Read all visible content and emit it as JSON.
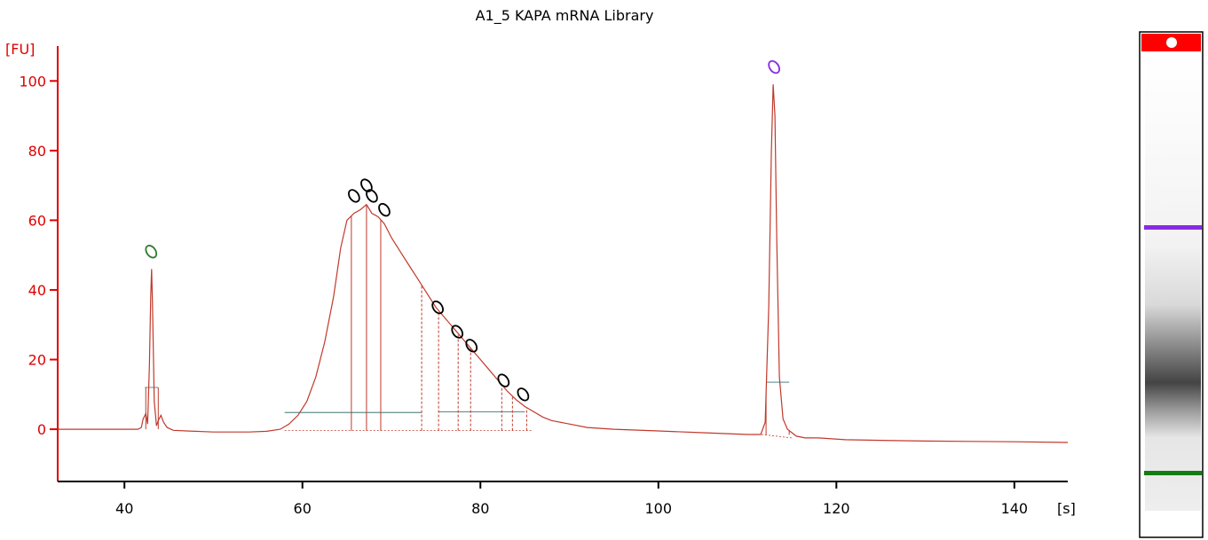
{
  "chart_data": {
    "type": "line",
    "title": "A1_5 KAPA mRNA Library",
    "ylabel": "[FU]",
    "xlabel": "[s]",
    "xlim": [
      32.5,
      146
    ],
    "ylim": [
      -15,
      110
    ],
    "xticks": [
      40,
      60,
      80,
      100,
      120,
      140
    ],
    "yticks": [
      0,
      20,
      40,
      60,
      80,
      100
    ],
    "grid": false,
    "series": [
      {
        "color": "#c0392b",
        "points": [
          [
            32.5,
            0
          ],
          [
            41.5,
            0
          ],
          [
            41.9,
            0.5
          ],
          [
            42.1,
            3
          ],
          [
            42.4,
            4.5
          ],
          [
            42.6,
            1.5
          ],
          [
            42.8,
            18
          ],
          [
            42.95,
            38
          ],
          [
            43.05,
            46
          ],
          [
            43.15,
            36
          ],
          [
            43.35,
            8
          ],
          [
            43.6,
            1
          ],
          [
            43.8,
            2.5
          ],
          [
            44.1,
            4
          ],
          [
            44.4,
            2
          ],
          [
            44.8,
            0.5
          ],
          [
            45.5,
            -0.3
          ],
          [
            47,
            -0.5
          ],
          [
            50,
            -0.8
          ],
          [
            54,
            -0.8
          ],
          [
            56,
            -0.6
          ],
          [
            57.5,
            0
          ],
          [
            58.5,
            1.5
          ],
          [
            59.5,
            4
          ],
          [
            60.5,
            8
          ],
          [
            61.5,
            15
          ],
          [
            62.5,
            25
          ],
          [
            63.5,
            38
          ],
          [
            64.3,
            52
          ],
          [
            65,
            60
          ],
          [
            65.8,
            62
          ],
          [
            66.5,
            63
          ],
          [
            67.2,
            64.5
          ],
          [
            67.8,
            62
          ],
          [
            68.5,
            61
          ],
          [
            69.2,
            59
          ],
          [
            70,
            55
          ],
          [
            71,
            51
          ],
          [
            72,
            47
          ],
          [
            73,
            43
          ],
          [
            74,
            39
          ],
          [
            75,
            35
          ],
          [
            76,
            32
          ],
          [
            77,
            29
          ],
          [
            78,
            26
          ],
          [
            79,
            23
          ],
          [
            80,
            20
          ],
          [
            81,
            17
          ],
          [
            82,
            14
          ],
          [
            83,
            11
          ],
          [
            84,
            8.5
          ],
          [
            85,
            6.5
          ],
          [
            86,
            5
          ],
          [
            87,
            3.5
          ],
          [
            88,
            2.5
          ],
          [
            90,
            1.5
          ],
          [
            92,
            0.5
          ],
          [
            95,
            0
          ],
          [
            100,
            -0.5
          ],
          [
            105,
            -1
          ],
          [
            110,
            -1.5
          ],
          [
            111.5,
            -1.5
          ],
          [
            112,
            2
          ],
          [
            112.4,
            35
          ],
          [
            112.7,
            80
          ],
          [
            112.9,
            99
          ],
          [
            113.1,
            90
          ],
          [
            113.3,
            55
          ],
          [
            113.6,
            15
          ],
          [
            114,
            3
          ],
          [
            114.5,
            0
          ],
          [
            115.5,
            -2
          ],
          [
            116.5,
            -2.5
          ],
          [
            118,
            -2.5
          ],
          [
            121,
            -3
          ],
          [
            125,
            -3.2
          ],
          [
            130,
            -3.4
          ],
          [
            135,
            -3.5
          ],
          [
            140,
            -3.6
          ],
          [
            146,
            -3.8
          ]
        ]
      }
    ],
    "peak_markers": [
      {
        "x": 43.0,
        "y": 51,
        "color": "#2e7d32"
      },
      {
        "x": 65.8,
        "y": 67,
        "color": "#000000"
      },
      {
        "x": 67.2,
        "y": 70,
        "color": "#000000"
      },
      {
        "x": 67.8,
        "y": 67,
        "color": "#000000"
      },
      {
        "x": 69.2,
        "y": 63,
        "color": "#000000"
      },
      {
        "x": 75.2,
        "y": 35,
        "color": "#000000"
      },
      {
        "x": 77.4,
        "y": 28,
        "color": "#000000"
      },
      {
        "x": 79.0,
        "y": 24,
        "color": "#000000"
      },
      {
        "x": 82.6,
        "y": 14,
        "color": "#000000"
      },
      {
        "x": 84.8,
        "y": 10,
        "color": "#000000"
      },
      {
        "x": 113.0,
        "y": 104,
        "color": "#8a2be2"
      }
    ],
    "solid_lines": [
      65.5,
      67.2,
      68.8
    ],
    "dashed_lines": [
      73.4,
      75.3,
      77.5,
      78.9,
      82.4,
      83.6,
      85.2
    ],
    "baselines": [
      {
        "x1": 58,
        "x2": 73.4,
        "y": 4.8
      },
      {
        "x1": 75.3,
        "x2": 85,
        "y": 5
      },
      {
        "x1": 112.1,
        "x2": 114.7,
        "y": 13.5
      }
    ],
    "lower_marker_tick": {
      "x1": 42.3,
      "x2": 43.8,
      "y": 12
    },
    "gel": {
      "top_color": "#ff0000",
      "upper_marker_color": "#8a2be2",
      "lower_marker_color": "#137d13"
    }
  }
}
